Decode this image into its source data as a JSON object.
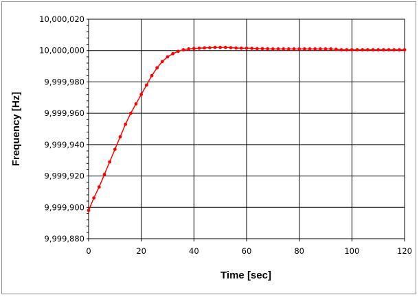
{
  "chart_data": {
    "type": "line",
    "xlabel": "Time [sec]",
    "ylabel": "Frequency [Hz]",
    "xlim": [
      0,
      120
    ],
    "ylim": [
      9999880,
      10000020
    ],
    "x_ticks": [
      0,
      20,
      40,
      60,
      80,
      100,
      120
    ],
    "y_ticks": [
      9999880,
      9999900,
      9999920,
      9999940,
      9999960,
      9999980,
      10000000,
      10000020
    ],
    "x_tick_labels": [
      "0",
      "20",
      "40",
      "60",
      "80",
      "100",
      "120"
    ],
    "y_tick_labels": [
      "9,999,880",
      "9,999,900",
      "9,999,920",
      "9,999,940",
      "9,999,960",
      "9,999,980",
      "10,000,000",
      "10,000,020"
    ],
    "grid": true,
    "legend": "none",
    "series_color": "#ff0000",
    "series": [
      {
        "x": [
          0,
          2,
          4,
          6,
          8,
          10,
          12,
          14,
          16,
          18,
          20,
          22,
          24,
          26,
          28,
          30,
          32,
          34,
          36,
          38,
          40,
          42,
          44,
          46,
          48,
          50,
          52,
          54,
          56,
          58,
          60,
          62,
          64,
          66,
          68,
          70,
          72,
          74,
          76,
          78,
          80,
          82,
          84,
          86,
          88,
          90,
          92,
          94,
          96,
          98,
          100,
          102,
          104,
          106,
          108,
          110,
          112,
          114,
          116,
          118,
          120
        ],
        "values": [
          9999898,
          9999906,
          9999913,
          9999921,
          9999929,
          9999937,
          9999945,
          9999953,
          9999960,
          9999966,
          9999972,
          9999978,
          9999984,
          9999989,
          9999993,
          9999996,
          9999998,
          9999999.5,
          10000000.5,
          10000001,
          10000001.3,
          10000001.5,
          10000001.7,
          10000001.8,
          10000002,
          10000002,
          10000002,
          10000001.8,
          10000001.6,
          10000001.5,
          10000001.5,
          10000001.4,
          10000001.2,
          10000001.2,
          10000001.1,
          10000001,
          10000001,
          10000001,
          10000001,
          10000001,
          10000001,
          10000001,
          10000001,
          10000001,
          10000001,
          10000001,
          10000001,
          10000000.8,
          10000000.5,
          10000000.5,
          10000000.5,
          10000000.5,
          10000000.5,
          10000000.5,
          10000000.5,
          10000000.5,
          10000000.5,
          10000000.5,
          10000000.5,
          10000000.5,
          10000000.5
        ]
      }
    ]
  }
}
